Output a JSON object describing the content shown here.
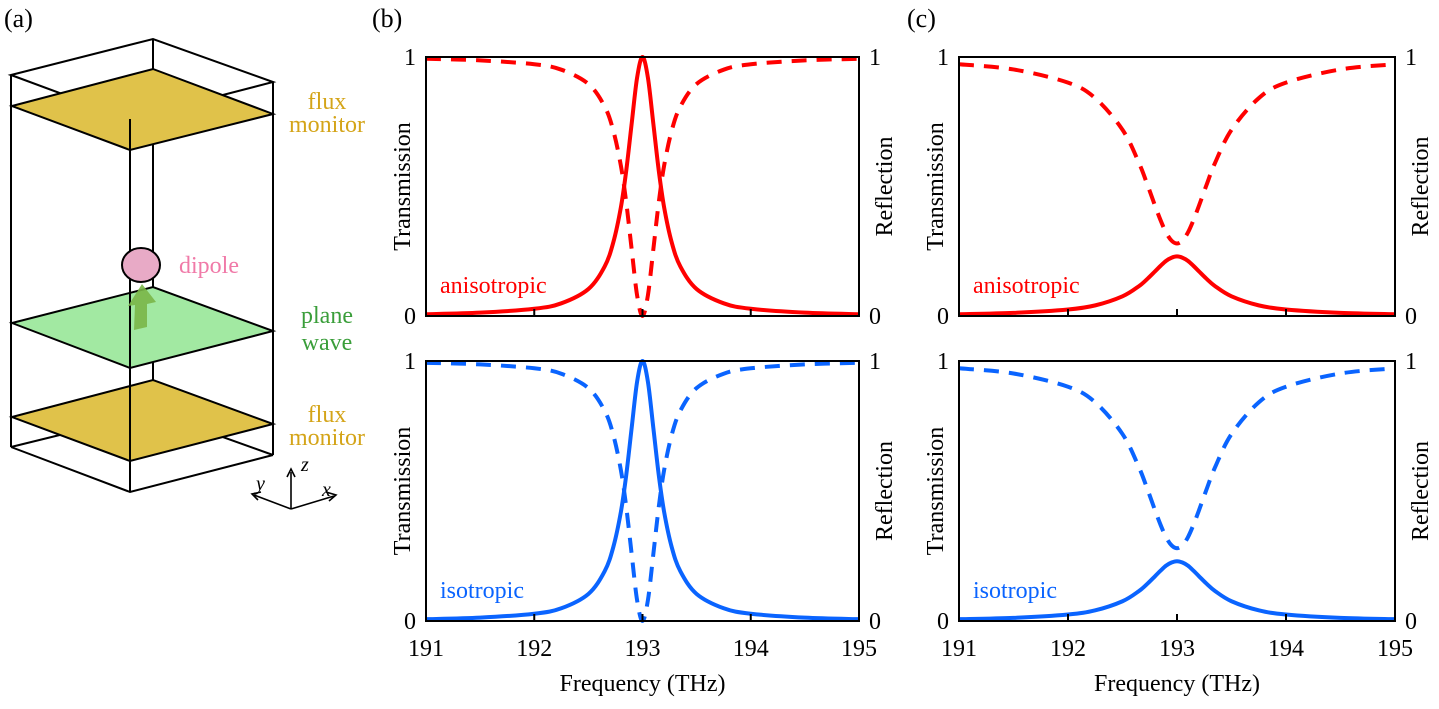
{
  "colors": {
    "anisotropic": "#ff0000",
    "isotropic": "#0a64ff",
    "flux_monitor": "#e0c24a",
    "flux_monitor_text": "#d4a418",
    "plane_wave": "#a2e9a2",
    "plane_wave_text": "#3a9e3a",
    "dipole": "#e8aac6",
    "dipole_text": "#f07aa8",
    "arrow": "#7ab648"
  },
  "panel_a": {
    "label": "(a)",
    "flux_top": [
      "flux",
      "monitor"
    ],
    "dipole": "dipole",
    "plane_wave": [
      "plane",
      "wave"
    ],
    "flux_bottom": [
      "flux",
      "monitor"
    ],
    "axes": {
      "z": "z",
      "y": "y",
      "x": "x"
    }
  },
  "panel_b": {
    "label": "(b)"
  },
  "panel_c": {
    "label": "(c)"
  },
  "chart_data": [
    {
      "panel": "b",
      "position": "top",
      "type": "line",
      "xlabel": "",
      "ylabel_left": "Transmission",
      "ylabel_right": "Reflection",
      "xlim": [
        191,
        195
      ],
      "ylim": [
        0,
        1
      ],
      "xticks": [
        "191",
        "192",
        "193",
        "194",
        "195"
      ],
      "show_xtick_labels": false,
      "yticks_left": [
        "0",
        "1"
      ],
      "yticks_right": [
        "0",
        "1"
      ],
      "annotation": "anisotropic",
      "color": "#ff0000",
      "x": [
        191,
        191.5,
        192,
        192.25,
        192.5,
        192.65,
        192.73,
        192.8,
        192.85,
        192.9,
        192.95,
        193,
        193.05,
        193.1,
        193.15,
        193.2,
        193.27,
        193.35,
        193.5,
        193.75,
        194,
        194.5,
        195
      ],
      "series": [
        {
          "style": "solid",
          "axis": "left",
          "values": [
            0.007,
            0.013,
            0.028,
            0.049,
            0.104,
            0.191,
            0.284,
            0.419,
            0.562,
            0.743,
            0.92,
            1,
            0.92,
            0.743,
            0.562,
            0.419,
            0.284,
            0.191,
            0.104,
            0.049,
            0.028,
            0.013,
            0.007
          ]
        },
        {
          "style": "dashed",
          "axis": "right",
          "values": [
            0.993,
            0.987,
            0.972,
            0.951,
            0.896,
            0.809,
            0.716,
            0.581,
            0.438,
            0.257,
            0.08,
            0,
            0.08,
            0.257,
            0.438,
            0.581,
            0.716,
            0.809,
            0.896,
            0.951,
            0.972,
            0.987,
            0.993
          ]
        }
      ]
    },
    {
      "panel": "b",
      "position": "bottom",
      "type": "line",
      "xlabel": "Frequency (THz)",
      "ylabel_left": "Transmission",
      "ylabel_right": "Reflection",
      "xlim": [
        191,
        195
      ],
      "ylim": [
        0,
        1
      ],
      "xticks": [
        "191",
        "192",
        "193",
        "194",
        "195"
      ],
      "show_xtick_labels": true,
      "yticks_left": [
        "0",
        "1"
      ],
      "yticks_right": [
        "0",
        "1"
      ],
      "annotation": "isotropic",
      "color": "#0a64ff",
      "x": [
        191,
        191.5,
        192,
        192.25,
        192.5,
        192.65,
        192.73,
        192.8,
        192.85,
        192.9,
        192.95,
        193,
        193.05,
        193.1,
        193.15,
        193.2,
        193.27,
        193.35,
        193.5,
        193.75,
        194,
        194.5,
        195
      ],
      "series": [
        {
          "style": "solid",
          "axis": "left",
          "values": [
            0.007,
            0.013,
            0.028,
            0.049,
            0.104,
            0.191,
            0.284,
            0.419,
            0.562,
            0.743,
            0.92,
            1,
            0.92,
            0.743,
            0.562,
            0.419,
            0.284,
            0.191,
            0.104,
            0.049,
            0.028,
            0.013,
            0.007
          ]
        },
        {
          "style": "dashed",
          "axis": "right",
          "values": [
            0.993,
            0.987,
            0.972,
            0.951,
            0.896,
            0.809,
            0.716,
            0.581,
            0.438,
            0.257,
            0.08,
            0,
            0.08,
            0.257,
            0.438,
            0.581,
            0.716,
            0.809,
            0.896,
            0.951,
            0.972,
            0.987,
            0.993
          ]
        }
      ]
    },
    {
      "panel": "c",
      "position": "top",
      "type": "line",
      "xlabel": "",
      "ylabel_left": "Transmission",
      "ylabel_right": "Reflection",
      "xlim": [
        191,
        195
      ],
      "ylim": [
        0,
        1
      ],
      "xticks": [
        "191",
        "192",
        "193",
        "194",
        "195"
      ],
      "show_xtick_labels": false,
      "yticks_left": [
        "0",
        "1"
      ],
      "yticks_right": [
        "0",
        "1"
      ],
      "annotation": "anisotropic",
      "color": "#ff0000",
      "x": [
        191,
        191.5,
        192,
        192.25,
        192.5,
        192.65,
        192.73,
        192.8,
        192.85,
        192.9,
        192.95,
        193,
        193.05,
        193.1,
        193.15,
        193.2,
        193.27,
        193.35,
        193.5,
        193.75,
        194,
        194.5,
        195
      ],
      "series": [
        {
          "style": "solid",
          "axis": "left",
          "values": [
            0.007,
            0.012,
            0.025,
            0.041,
            0.076,
            0.115,
            0.144,
            0.173,
            0.194,
            0.213,
            0.225,
            0.23,
            0.225,
            0.213,
            0.194,
            0.173,
            0.144,
            0.115,
            0.076,
            0.041,
            0.025,
            0.012,
            0.007
          ]
        },
        {
          "style": "dashed",
          "axis": "right",
          "values": [
            0.972,
            0.952,
            0.901,
            0.841,
            0.719,
            0.592,
            0.505,
            0.424,
            0.369,
            0.322,
            0.291,
            0.28,
            0.291,
            0.322,
            0.369,
            0.424,
            0.505,
            0.592,
            0.719,
            0.841,
            0.901,
            0.952,
            0.972
          ]
        }
      ]
    },
    {
      "panel": "c",
      "position": "bottom",
      "type": "line",
      "xlabel": "Frequency (THz)",
      "ylabel_left": "Transmission",
      "ylabel_right": "Reflection",
      "xlim": [
        191,
        195
      ],
      "ylim": [
        0,
        1
      ],
      "xticks": [
        "191",
        "192",
        "193",
        "194",
        "195"
      ],
      "show_xtick_labels": true,
      "yticks_left": [
        "0",
        "1"
      ],
      "yticks_right": [
        "0",
        "1"
      ],
      "annotation": "isotropic",
      "color": "#0a64ff",
      "x": [
        191,
        191.5,
        192,
        192.25,
        192.5,
        192.65,
        192.73,
        192.8,
        192.85,
        192.9,
        192.95,
        193,
        193.05,
        193.1,
        193.15,
        193.2,
        193.27,
        193.35,
        193.5,
        193.75,
        194,
        194.5,
        195
      ],
      "series": [
        {
          "style": "solid",
          "axis": "left",
          "values": [
            0.007,
            0.012,
            0.025,
            0.041,
            0.076,
            0.115,
            0.144,
            0.173,
            0.194,
            0.213,
            0.225,
            0.23,
            0.225,
            0.213,
            0.194,
            0.173,
            0.144,
            0.115,
            0.076,
            0.041,
            0.025,
            0.012,
            0.007
          ]
        },
        {
          "style": "dashed",
          "axis": "right",
          "values": [
            0.972,
            0.952,
            0.901,
            0.841,
            0.719,
            0.592,
            0.505,
            0.424,
            0.369,
            0.322,
            0.291,
            0.28,
            0.291,
            0.322,
            0.369,
            0.424,
            0.505,
            0.592,
            0.719,
            0.841,
            0.901,
            0.952,
            0.972
          ]
        }
      ]
    }
  ]
}
